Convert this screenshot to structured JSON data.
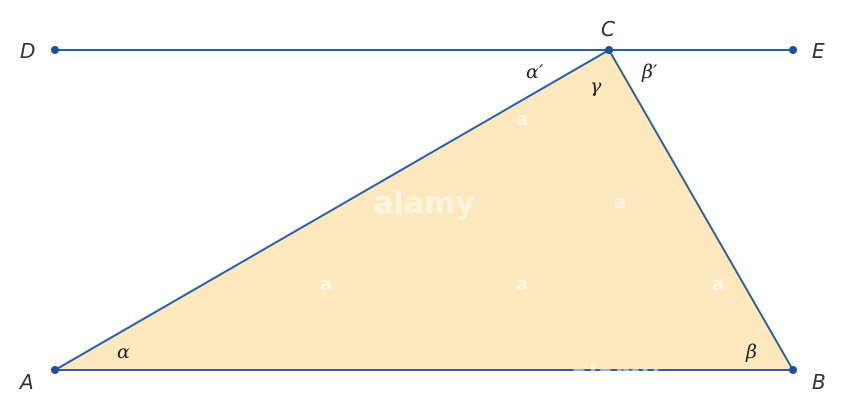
{
  "diagram": {
    "points": {
      "A": {
        "label": "A"
      },
      "B": {
        "label": "B"
      },
      "C": {
        "label": "C"
      },
      "D": {
        "label": "D"
      },
      "E": {
        "label": "E"
      }
    },
    "angles": {
      "alpha": "α",
      "beta": "β",
      "gamma": "γ",
      "alpha_prime": "α′",
      "beta_prime": "β′"
    },
    "watermark": {
      "brand": "alamy",
      "small_mark": "a"
    },
    "colors": {
      "line": "#2a5fa8",
      "point": "#1f4f9a",
      "triangle_fill": "#fde9bd",
      "label": "#333333"
    }
  }
}
